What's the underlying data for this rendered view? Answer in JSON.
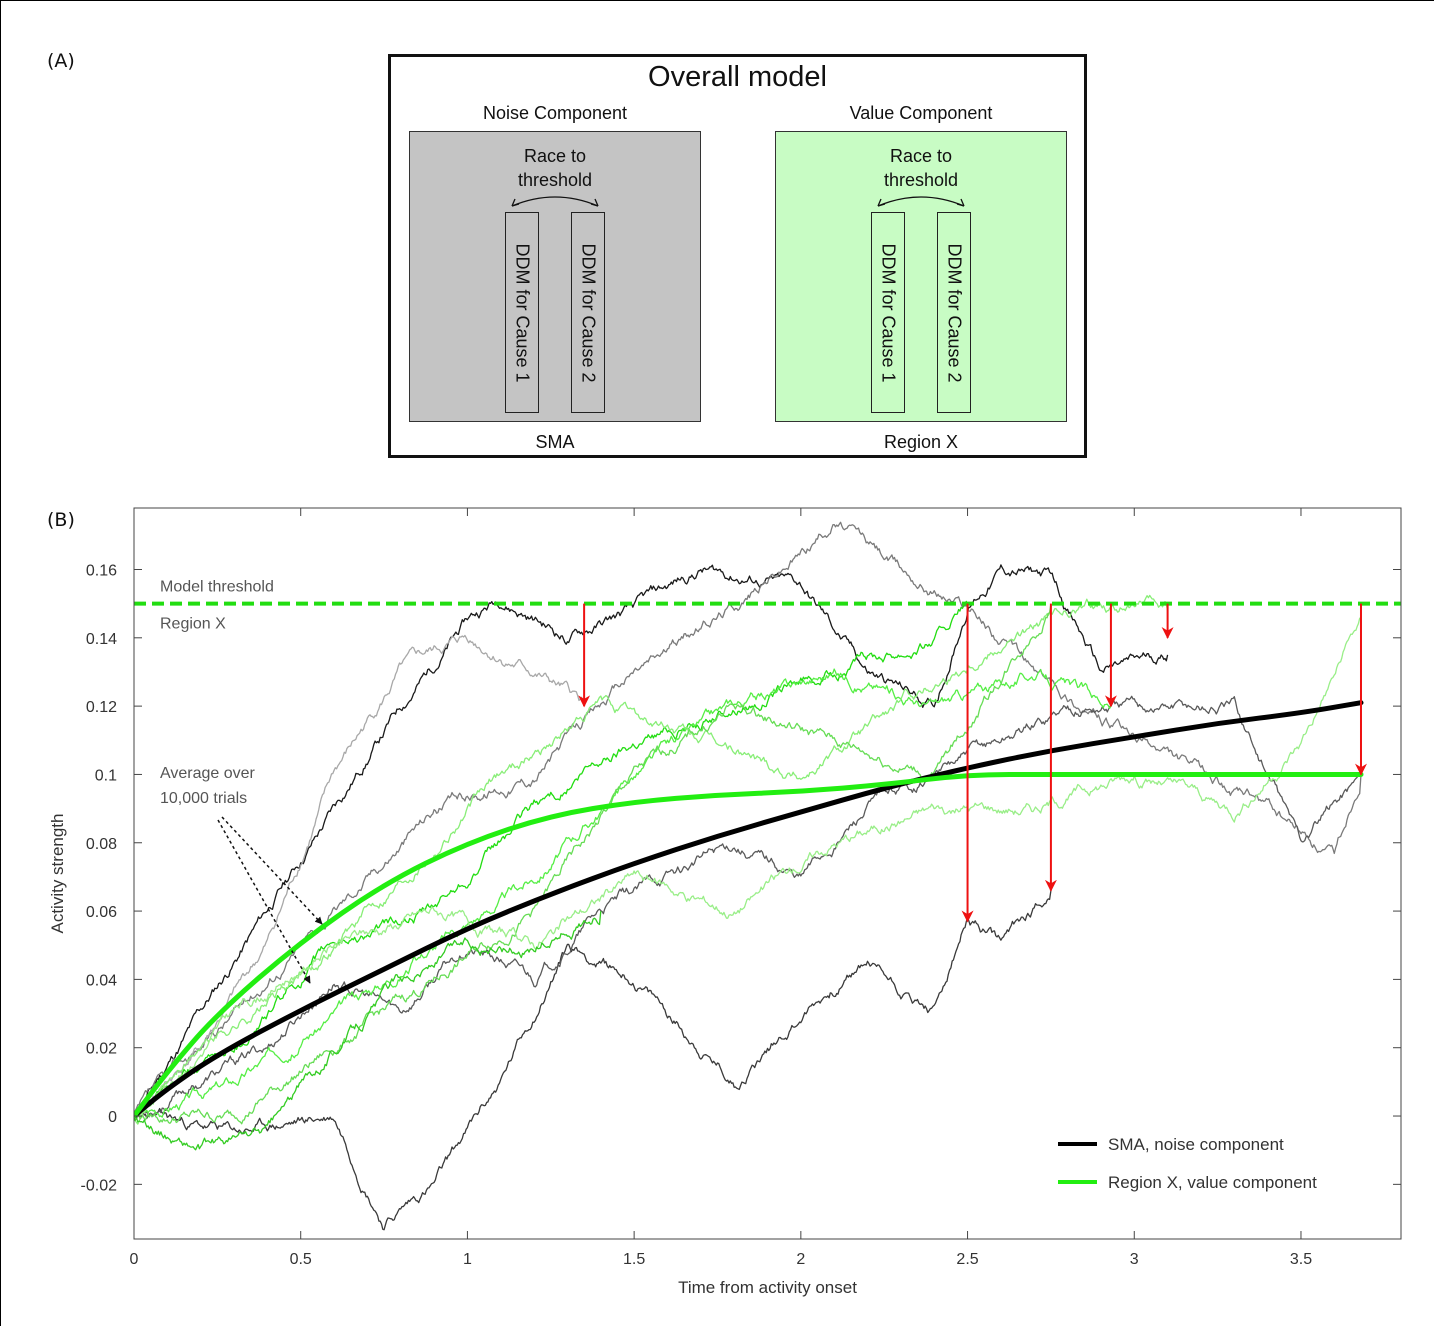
{
  "panel_labels": {
    "a": "(A)",
    "b": "(B)"
  },
  "panel_a": {
    "title": "Overall model",
    "left": {
      "heading": "Noise Component",
      "race_line1": "Race to",
      "race_line2": "threshold",
      "ddm1": "DDM for Cause 1",
      "ddm2": "DDM for Cause 2",
      "footer": "SMA",
      "fill_color": "#c4c4c4"
    },
    "right": {
      "heading": "Value Component",
      "race_line1": "Race to",
      "race_line2": "threshold",
      "ddm1": "DDM for Cause 1",
      "ddm2": "DDM for Cause 2",
      "footer": "Region X",
      "fill_color": "#c8fcc4"
    }
  },
  "chart_data": {
    "type": "line",
    "xlabel": "Time from activity onset",
    "ylabel": "Activity strength",
    "xlim": [
      0,
      3.8
    ],
    "ylim": [
      -0.036,
      0.178
    ],
    "xticks": [
      0,
      0.5,
      1,
      1.5,
      2,
      2.5,
      3,
      3.5
    ],
    "xtick_labels": [
      "0",
      "0.5",
      "1",
      "1.5",
      "2",
      "2.5",
      "3",
      "3.5"
    ],
    "yticks": [
      -0.02,
      0,
      0.02,
      0.04,
      0.06,
      0.08,
      0.1,
      0.12,
      0.14,
      0.16
    ],
    "ytick_labels": [
      "-0.02",
      "0",
      "0.02",
      "0.04",
      "0.06",
      "0.08",
      "0.1",
      "0.12",
      "0.14",
      "0.16"
    ],
    "threshold": {
      "value": 0.15,
      "label_above": "Model threshold",
      "label_below": "Region X",
      "color": "#22dd11"
    },
    "annotation": {
      "line1": "Average over",
      "line2": "10,000 trials"
    },
    "legend": {
      "placement": "bottom-right",
      "entries": [
        {
          "label": "SMA, noise component",
          "color": "#000000"
        },
        {
          "label": "Region X, value component",
          "color": "#22ee11"
        }
      ]
    },
    "series": [
      {
        "name": "SMA, noise component",
        "color": "#000000",
        "x": [
          0,
          0.1,
          0.25,
          0.5,
          0.75,
          1.0,
          1.25,
          1.5,
          1.75,
          2.0,
          2.25,
          2.5,
          2.75,
          3.0,
          3.25,
          3.5,
          3.68
        ],
        "y": [
          0,
          0.008,
          0.018,
          0.031,
          0.043,
          0.055,
          0.065,
          0.074,
          0.082,
          0.089,
          0.096,
          0.102,
          0.107,
          0.111,
          0.115,
          0.118,
          0.121
        ]
      },
      {
        "name": "Region X, value component",
        "color": "#22ee11",
        "x": [
          0,
          0.1,
          0.25,
          0.5,
          0.75,
          1.0,
          1.25,
          1.5,
          1.75,
          2.0,
          2.25,
          2.5,
          2.75,
          3.0,
          3.25,
          3.5,
          3.68
        ],
        "y": [
          0,
          0.013,
          0.03,
          0.051,
          0.068,
          0.08,
          0.088,
          0.092,
          0.094,
          0.095,
          0.097,
          0.1,
          0.1,
          0.1,
          0.1,
          0.1,
          0.1
        ]
      }
    ],
    "trial_traces": [
      {
        "color": "#1a1a1a",
        "seed": 11,
        "x": [
          0,
          0.2,
          0.4,
          0.6,
          0.8,
          1.0,
          1.1,
          1.3,
          1.5,
          1.7,
          2.0,
          2.2,
          2.4,
          2.5,
          2.6,
          2.75,
          2.9,
          3.1
        ],
        "y": [
          0,
          0.03,
          0.06,
          0.09,
          0.12,
          0.145,
          0.152,
          0.14,
          0.148,
          0.16,
          0.155,
          0.13,
          0.12,
          0.15,
          0.16,
          0.158,
          0.13,
          0.135
        ]
      },
      {
        "color": "#3a3a3a",
        "seed": 23,
        "x": [
          0,
          0.3,
          0.6,
          0.75,
          0.9,
          1.1,
          1.3,
          1.5,
          1.7,
          1.8,
          2.0,
          2.2,
          2.4,
          2.5,
          2.6,
          2.75
        ],
        "y": [
          0,
          -0.005,
          0.0,
          -0.03,
          -0.02,
          0.01,
          0.05,
          0.04,
          0.02,
          0.01,
          0.03,
          0.045,
          0.03,
          0.057,
          0.05,
          0.066
        ]
      },
      {
        "color": "#7a7a7a",
        "seed": 37,
        "x": [
          0,
          0.3,
          0.6,
          0.9,
          1.2,
          1.5,
          1.8,
          2.0,
          2.1,
          2.3,
          2.5,
          2.7,
          3.0,
          3.2,
          3.4,
          3.6,
          3.68
        ],
        "y": [
          0,
          0.03,
          0.06,
          0.09,
          0.1,
          0.13,
          0.15,
          0.165,
          0.175,
          0.16,
          0.15,
          0.13,
          0.11,
          0.1,
          0.09,
          0.075,
          0.1
        ]
      },
      {
        "color": "#a8a8a8",
        "seed": 41,
        "x": [
          0,
          0.2,
          0.4,
          0.6,
          0.8,
          1.0,
          1.2,
          1.35
        ],
        "y": [
          0,
          0.02,
          0.05,
          0.1,
          0.13,
          0.14,
          0.13,
          0.12
        ]
      },
      {
        "color": "#5a5a5a",
        "seed": 53,
        "x": [
          0,
          0.2,
          0.4,
          0.6,
          0.8,
          1.0,
          1.2,
          1.4,
          1.6,
          1.8,
          2.0,
          2.2,
          2.4,
          2.6,
          2.8,
          3.0,
          3.3,
          3.5,
          3.68
        ],
        "y": [
          0,
          0.01,
          0.02,
          0.04,
          0.03,
          0.05,
          0.04,
          0.06,
          0.07,
          0.08,
          0.07,
          0.09,
          0.1,
          0.11,
          0.12,
          0.12,
          0.12,
          0.08,
          0.1
        ]
      },
      {
        "color": "#22dd11",
        "seed": 61,
        "x": [
          0,
          0.3,
          0.6,
          0.9,
          1.2,
          1.5,
          1.8,
          2.1,
          2.4,
          2.5
        ],
        "y": [
          0,
          0.02,
          0.05,
          0.06,
          0.09,
          0.11,
          0.12,
          0.13,
          0.14,
          0.15
        ]
      },
      {
        "color": "#55ee44",
        "seed": 67,
        "x": [
          0,
          0.3,
          0.6,
          0.9,
          1.2,
          1.5,
          1.8,
          2.1,
          2.4,
          2.7,
          2.93
        ],
        "y": [
          0,
          0.01,
          0.03,
          0.05,
          0.07,
          0.1,
          0.12,
          0.13,
          0.12,
          0.13,
          0.12
        ]
      },
      {
        "color": "#88ee77",
        "seed": 71,
        "x": [
          0,
          0.2,
          0.5,
          0.8,
          1.1,
          1.4,
          1.7,
          2.0,
          2.3,
          2.6,
          2.9,
          3.1
        ],
        "y": [
          0,
          0.02,
          0.04,
          0.07,
          0.1,
          0.12,
          0.11,
          0.1,
          0.12,
          0.14,
          0.15,
          0.148
        ]
      },
      {
        "color": "#66dd55",
        "seed": 79,
        "x": [
          0,
          0.3,
          0.6,
          0.9,
          1.2,
          1.5,
          1.8,
          2.1,
          2.4,
          2.75
        ],
        "y": [
          0,
          0.0,
          0.02,
          0.04,
          0.06,
          0.1,
          0.12,
          0.11,
          0.1,
          0.15
        ]
      },
      {
        "color": "#99ee88",
        "seed": 83,
        "x": [
          0,
          0.3,
          0.6,
          0.9,
          1.2,
          1.5,
          1.8,
          2.1,
          2.4,
          2.7,
          3.0,
          3.3,
          3.5,
          3.68
        ],
        "y": [
          0,
          0.03,
          0.05,
          0.06,
          0.05,
          0.07,
          0.06,
          0.08,
          0.09,
          0.09,
          0.1,
          0.09,
          0.11,
          0.145
        ]
      },
      {
        "color": "#33cc22",
        "seed": 89,
        "x": [
          0,
          0.2,
          0.4,
          0.6,
          0.8,
          1.0,
          1.2,
          1.4
        ],
        "y": [
          0,
          -0.01,
          -0.005,
          0.02,
          0.04,
          0.05,
          0.05,
          0.06
        ]
      }
    ],
    "drop_arrows": [
      {
        "x": 1.35,
        "from": 0.15,
        "to": 0.12
      },
      {
        "x": 2.5,
        "from": 0.15,
        "to": 0.057
      },
      {
        "x": 2.75,
        "from": 0.15,
        "to": 0.066
      },
      {
        "x": 2.93,
        "from": 0.15,
        "to": 0.12
      },
      {
        "x": 3.1,
        "from": 0.15,
        "to": 0.14
      },
      {
        "x": 3.68,
        "from": 0.15,
        "to": 0.1
      }
    ],
    "arrow_color": "#ee1111"
  }
}
